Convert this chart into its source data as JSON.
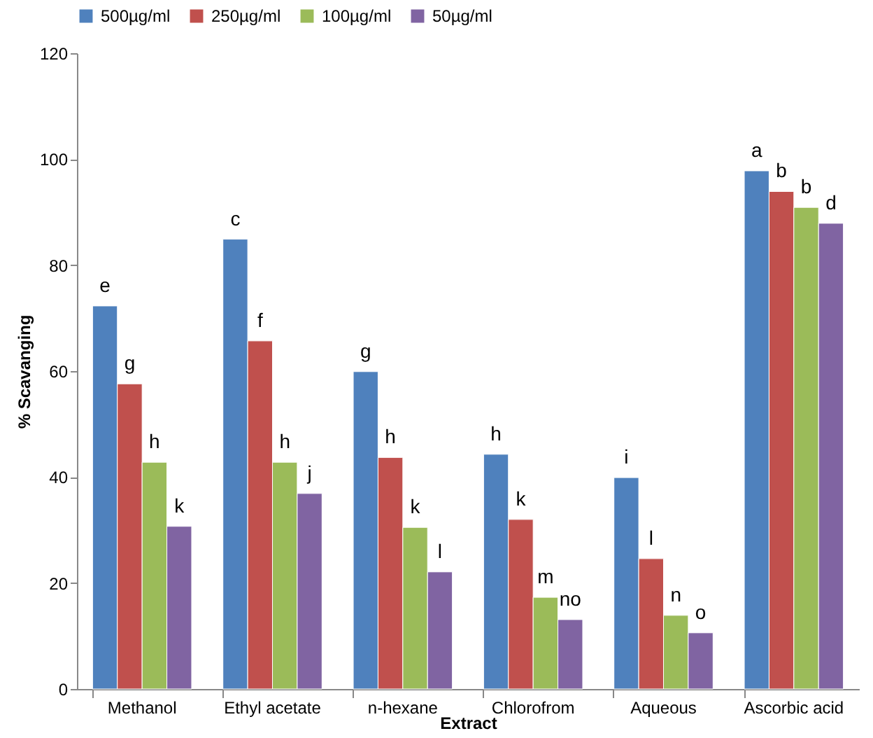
{
  "chart_data": {
    "type": "bar",
    "xlabel": "Extract",
    "ylabel": "% Scavanging",
    "categories": [
      "Methanol",
      "Ethyl acetate",
      "n-hexane",
      "Chlorofrom",
      "Aqueous",
      "Ascorbic acid"
    ],
    "series": [
      {
        "name": "500µg/ml",
        "color": "#4f81bd",
        "values": [
          72.3,
          84.9,
          59.9,
          44.3,
          39.9,
          97.8
        ],
        "value_labels": [
          "e",
          "c",
          "g",
          "h",
          "i",
          "a"
        ]
      },
      {
        "name": "250µg/ml",
        "color": "#c0504d",
        "values": [
          57.6,
          65.7,
          43.7,
          32.0,
          24.6,
          93.9
        ],
        "value_labels": [
          "g",
          "f",
          "h",
          "k",
          "l",
          "b"
        ]
      },
      {
        "name": "100µg/ml",
        "color": "#9bbb59",
        "values": [
          42.8,
          42.8,
          30.5,
          17.3,
          13.9,
          90.9
        ],
        "value_labels": [
          "h",
          "h",
          "k",
          "m",
          "n",
          "b"
        ]
      },
      {
        "name": "50µg/ml",
        "color": "#8064a2",
        "values": [
          30.7,
          36.9,
          22.1,
          13.1,
          10.6,
          87.9
        ],
        "value_labels": [
          "k",
          "j",
          "l",
          "no",
          "o",
          "d"
        ]
      }
    ],
    "ylim": [
      0,
      120
    ],
    "yticks": [
      0,
      20,
      40,
      60,
      80,
      100,
      120
    ],
    "grid": false,
    "legend": "top"
  }
}
